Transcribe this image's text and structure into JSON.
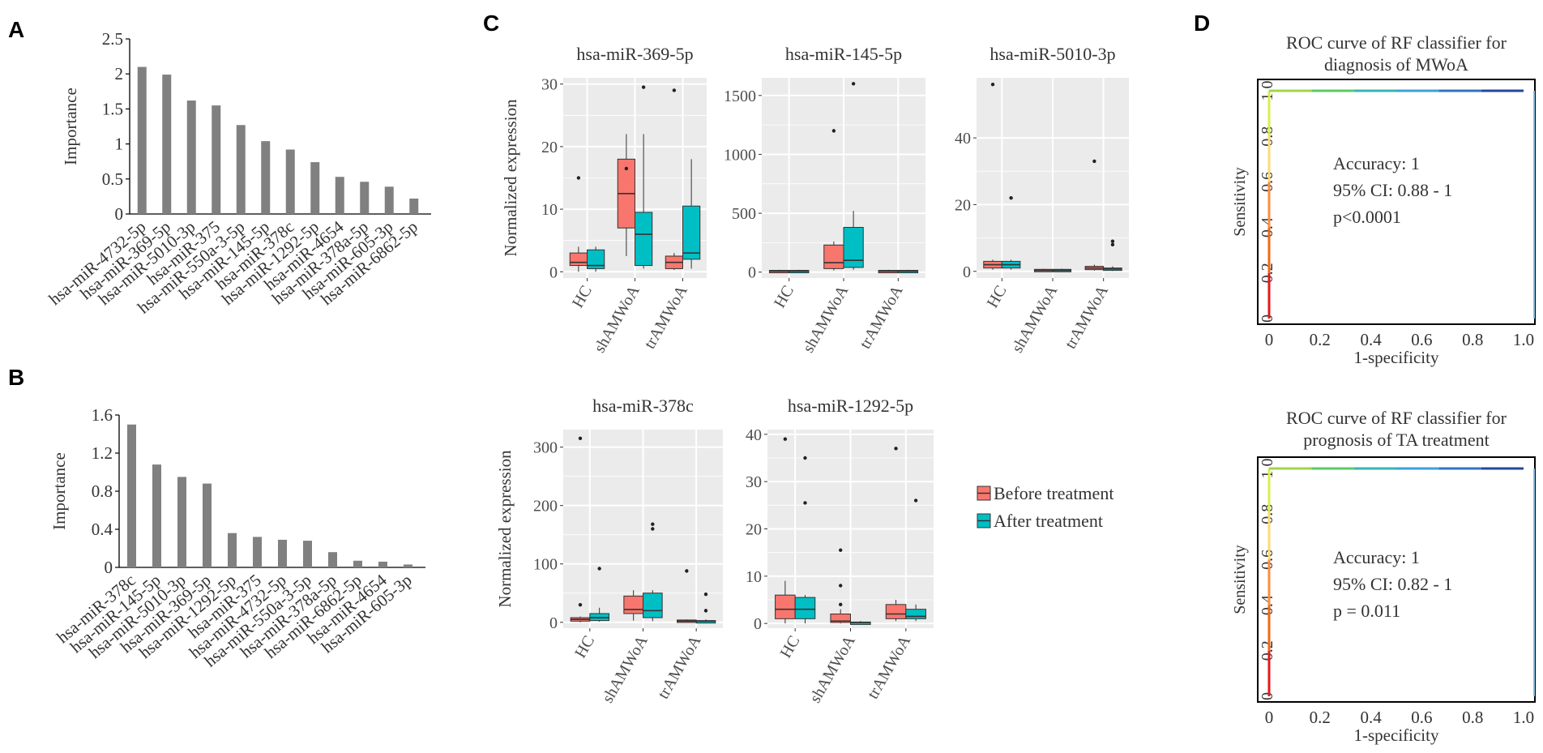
{
  "panel_labels": {
    "a": "A",
    "b": "B",
    "c": "C",
    "d": "D"
  },
  "colors": {
    "bar": "#808080",
    "before": "#f8766d",
    "after": "#00bfc4",
    "panel_bg": "#ebebeb"
  },
  "chart_data": [
    {
      "id": "A",
      "type": "bar",
      "ylabel": "Importance",
      "ylim": [
        0,
        2.5
      ],
      "yticks": [
        "0",
        "0.5",
        "1",
        "1.5",
        "2",
        "2.5"
      ],
      "categories": [
        "hsa-miR-4732-5p",
        "hsa-miR-369-5p",
        "hsa-miR-5010-3p",
        "hsa-miR-375",
        "hsa-miR-550a-3-5p",
        "hsa-miR-145-5p",
        "hsa-miR-378c",
        "hsa-miR-1292-5p",
        "hsa-miR-4654",
        "hsa-miR-378a-5p",
        "hsa-miR-605-3p",
        "hsa-miR-6862-5p"
      ],
      "values": [
        2.1,
        1.99,
        1.62,
        1.55,
        1.27,
        1.04,
        0.92,
        0.74,
        0.53,
        0.46,
        0.39,
        0.22
      ]
    },
    {
      "id": "B",
      "type": "bar",
      "ylabel": "Importance",
      "ylim": [
        0,
        1.6
      ],
      "yticks": [
        "0",
        "0.4",
        "0.8",
        "1.2",
        "1.6"
      ],
      "categories": [
        "hsa-miR-378c",
        "hsa-miR-145-5p",
        "hsa-miR-5010-3p",
        "hsa-miR-369-5p",
        "hsa-miR-1292-5p",
        "hsa-miR-375",
        "hsa-miR-4732-5p",
        "hsa-miR-550a-3-5p",
        "hsa-miR-378a-5p",
        "hsa-miR-6862-5p",
        "hsa-miR-4654",
        "hsa-miR-605-3p"
      ],
      "values": [
        1.5,
        1.08,
        0.95,
        0.88,
        0.36,
        0.32,
        0.29,
        0.28,
        0.16,
        0.07,
        0.06,
        0.03
      ]
    },
    {
      "id": "C1",
      "type": "box",
      "title": "hsa-miR-369-5p",
      "ylabel": "Normalized expression",
      "ylim": [
        -1,
        31
      ],
      "yticks": [
        0,
        10,
        20,
        30
      ],
      "categories": [
        "HC",
        "shAMWoA",
        "trAMWoA"
      ],
      "series": [
        {
          "name": "Before treatment",
          "boxes": [
            {
              "low": 0,
              "q1": 1,
              "med": 1.5,
              "q3": 3,
              "high": 4,
              "outliers": [
                15
              ]
            },
            {
              "low": 2.5,
              "q1": 7,
              "med": 12.5,
              "q3": 18,
              "high": 22,
              "outliers": [
                16.5
              ]
            },
            {
              "low": 0.3,
              "q1": 0.5,
              "med": 1.5,
              "q3": 2.5,
              "high": 3,
              "outliers": [
                29
              ]
            }
          ]
        },
        {
          "name": "After treatment",
          "boxes": [
            {
              "low": 0,
              "q1": 0.5,
              "med": 1,
              "q3": 3.5,
              "high": 4,
              "outliers": []
            },
            {
              "low": 0.5,
              "q1": 1,
              "med": 6,
              "q3": 9.5,
              "high": 22,
              "outliers": [
                29.5
              ]
            },
            {
              "low": 0.5,
              "q1": 2,
              "med": 3,
              "q3": 10.5,
              "high": 18,
              "outliers": []
            }
          ]
        }
      ]
    },
    {
      "id": "C2",
      "type": "box",
      "title": "hsa-miR-145-5p",
      "ylabel": "",
      "ylim": [
        -50,
        1650
      ],
      "yticks": [
        0,
        500,
        1000,
        1500
      ],
      "categories": [
        "HC",
        "shAMWoA",
        "trAMWoA"
      ],
      "series": [
        {
          "name": "Before treatment",
          "boxes": [
            {
              "low": 0,
              "q1": 3,
              "med": 8,
              "q3": 15,
              "high": 20,
              "outliers": []
            },
            {
              "low": 15,
              "q1": 30,
              "med": 80,
              "q3": 230,
              "high": 260,
              "outliers": [
                1200
              ]
            },
            {
              "low": 0,
              "q1": 3,
              "med": 8,
              "q3": 15,
              "high": 20,
              "outliers": []
            }
          ]
        },
        {
          "name": "After treatment",
          "boxes": [
            {
              "low": 0,
              "q1": 3,
              "med": 8,
              "q3": 15,
              "high": 20,
              "outliers": []
            },
            {
              "low": 20,
              "q1": 40,
              "med": 100,
              "q3": 380,
              "high": 520,
              "outliers": [
                1600
              ]
            },
            {
              "low": 0,
              "q1": 3,
              "med": 8,
              "q3": 15,
              "high": 20,
              "outliers": []
            }
          ]
        }
      ]
    },
    {
      "id": "C3",
      "type": "box",
      "title": "hsa-miR-5010-3p",
      "ylabel": "",
      "ylim": [
        -2,
        58
      ],
      "yticks": [
        0,
        20,
        40
      ],
      "categories": [
        "HC",
        "shAMWoA",
        "trAMWoA"
      ],
      "series": [
        {
          "name": "Before treatment",
          "boxes": [
            {
              "low": 0.5,
              "q1": 1,
              "med": 2,
              "q3": 3,
              "high": 3.5,
              "outliers": [
                56
              ]
            },
            {
              "low": 0,
              "q1": 0.1,
              "med": 0.3,
              "q3": 0.6,
              "high": 0.8,
              "outliers": []
            },
            {
              "low": 0.2,
              "q1": 0.5,
              "med": 1,
              "q3": 1.5,
              "high": 2,
              "outliers": [
                33
              ]
            }
          ]
        },
        {
          "name": "After treatment",
          "boxes": [
            {
              "low": 0.5,
              "q1": 1,
              "med": 2,
              "q3": 3,
              "high": 3.5,
              "outliers": [
                22
              ]
            },
            {
              "low": 0,
              "q1": 0.1,
              "med": 0.3,
              "q3": 0.6,
              "high": 0.8,
              "outliers": []
            },
            {
              "low": 0.1,
              "q1": 0.3,
              "med": 0.7,
              "q3": 1,
              "high": 1.5,
              "outliers": [
                8,
                9
              ]
            }
          ]
        }
      ]
    },
    {
      "id": "C4",
      "type": "box",
      "title": "hsa-miR-378c",
      "ylabel": "Normalized expression",
      "ylim": [
        -10,
        330
      ],
      "yticks": [
        0,
        100,
        200,
        300
      ],
      "categories": [
        "HC",
        "shAMWoA",
        "trAMWoA"
      ],
      "series": [
        {
          "name": "Before treatment",
          "boxes": [
            {
              "low": 0,
              "q1": 2,
              "med": 5,
              "q3": 8,
              "high": 10,
              "outliers": [
                30,
                315
              ]
            },
            {
              "low": 3,
              "q1": 15,
              "med": 22,
              "q3": 45,
              "high": 55,
              "outliers": []
            },
            {
              "low": 0,
              "q1": 1,
              "med": 2,
              "q3": 4,
              "high": 5,
              "outliers": [
                88
              ]
            }
          ]
        },
        {
          "name": "After treatment",
          "boxes": [
            {
              "low": 1,
              "q1": 3,
              "med": 8,
              "q3": 15,
              "high": 25,
              "outliers": [
                92
              ]
            },
            {
              "low": 2,
              "q1": 8,
              "med": 20,
              "q3": 50,
              "high": 55,
              "outliers": [
                160,
                168
              ]
            },
            {
              "low": 0,
              "q1": 1,
              "med": 2,
              "q3": 3,
              "high": 5,
              "outliers": [
                20,
                48
              ]
            }
          ]
        }
      ]
    },
    {
      "id": "C5",
      "type": "box",
      "title": "hsa-miR-1292-5p",
      "ylabel": "",
      "ylim": [
        -1,
        41
      ],
      "yticks": [
        0,
        10,
        20,
        30,
        40
      ],
      "categories": [
        "HC",
        "shAMWoA",
        "trAMWoA"
      ],
      "series": [
        {
          "name": "Before treatment",
          "boxes": [
            {
              "low": 0,
              "q1": 1,
              "med": 3,
              "q3": 6,
              "high": 9,
              "outliers": [
                39
              ]
            },
            {
              "low": 0,
              "q1": 0.2,
              "med": 0.5,
              "q3": 2,
              "high": 3,
              "outliers": [
                4,
                8,
                15.5
              ]
            },
            {
              "low": 0.5,
              "q1": 1,
              "med": 2,
              "q3": 4,
              "high": 5,
              "outliers": [
                37
              ]
            }
          ]
        },
        {
          "name": "After treatment",
          "boxes": [
            {
              "low": 0,
              "q1": 1,
              "med": 3,
              "q3": 5.5,
              "high": 6,
              "outliers": [
                25.5,
                35
              ]
            },
            {
              "low": 0,
              "q1": 0.1,
              "med": 0.2,
              "q3": 0.3,
              "high": 0.5,
              "outliers": []
            },
            {
              "low": 0.5,
              "q1": 1,
              "med": 1.5,
              "q3": 3,
              "high": 4,
              "outliers": [
                26
              ]
            }
          ]
        }
      ]
    },
    {
      "id": "D1",
      "type": "line",
      "title": [
        "ROC curve of RF classifier for",
        "diagnosis of MWoA"
      ],
      "xlabel": "1-specificity",
      "ylabel": "Sensitivity",
      "xticks": [
        "0",
        "0.2",
        "0.4",
        "0.6",
        "0.8",
        "1.0"
      ],
      "yticks": [
        "0",
        "0.2",
        "0.4",
        "0.6",
        "0.8",
        "1.0"
      ],
      "x": [
        0,
        0,
        1
      ],
      "y": [
        0,
        1,
        1
      ],
      "annotation": [
        "Accuracy: 1",
        "95% CI: 0.88 - 1",
        "p<0.0001"
      ]
    },
    {
      "id": "D2",
      "type": "line",
      "title": [
        "ROC curve of RF classifier for",
        "prognosis of TA treatment"
      ],
      "xlabel": "1-specificity",
      "ylabel": "Sensitivity",
      "xticks": [
        "0",
        "0.2",
        "0.4",
        "0.6",
        "0.8",
        "1.0"
      ],
      "yticks": [
        "0",
        "0.2",
        "0.4",
        "0.6",
        "0.8",
        "1.0"
      ],
      "x": [
        0,
        0,
        1
      ],
      "y": [
        0,
        1,
        1
      ],
      "annotation": [
        "Accuracy: 1",
        "95% CI: 0.82 - 1",
        "p = 0.011"
      ]
    }
  ],
  "legend": {
    "before": "Before treatment",
    "after": "After treatment"
  }
}
